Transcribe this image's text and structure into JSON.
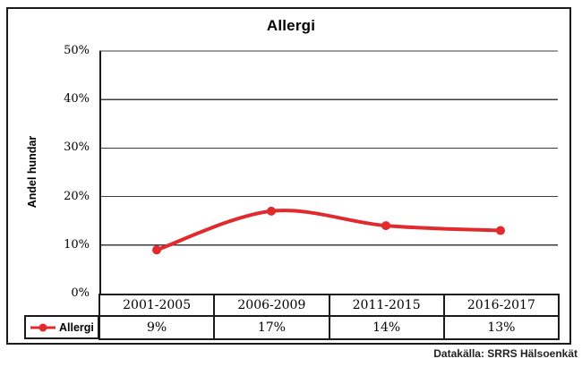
{
  "chart": {
    "title": "Allergi",
    "y_axis_label": "Andel hundar"
  },
  "source_note": "Datakälla: SRRS Hälsoenkät",
  "chart_data": {
    "type": "line",
    "smooth": true,
    "marker": "circle",
    "title": "Allergi",
    "xlabel": "",
    "ylabel": "Andel hundar",
    "categories": [
      "2001-2005",
      "2006-2009",
      "2011-2015",
      "2016-2017"
    ],
    "series": [
      {
        "name": "Allergi",
        "values": [
          9,
          17,
          14,
          13
        ],
        "display_values": [
          "9%",
          "17%",
          "14%",
          "13%"
        ],
        "color": "#e02a2e"
      }
    ],
    "ylim": [
      0,
      50
    ],
    "y_tick_step": 10,
    "y_tick_labels": [
      "0%",
      "10%",
      "20%",
      "30%",
      "40%",
      "50%"
    ],
    "grid": true,
    "legend_position": "bottom-left"
  },
  "colors": {
    "line": "#e02a2e",
    "frame_border": "#1a1a1a",
    "gridline": "#3d3d3d",
    "text": "#000000"
  }
}
